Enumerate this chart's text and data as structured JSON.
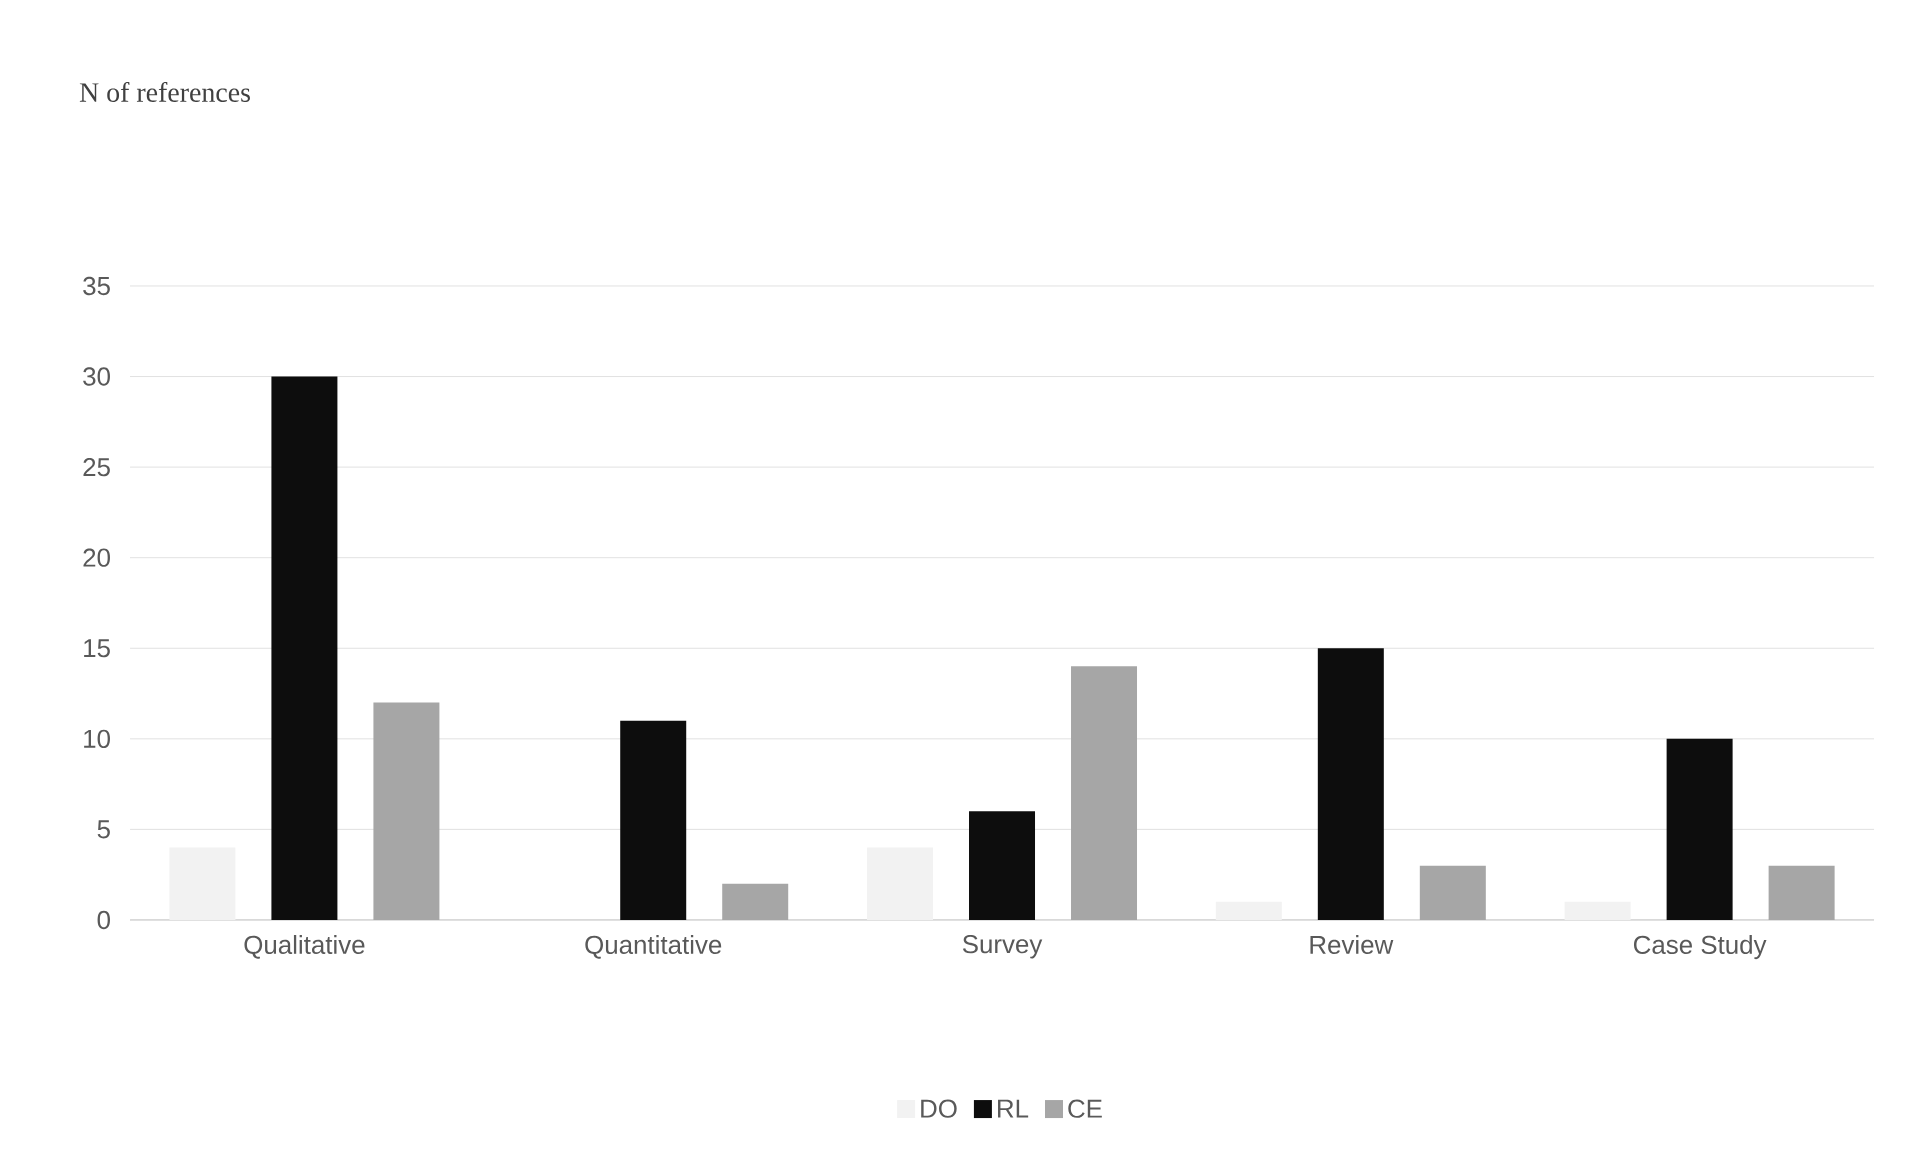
{
  "chart_data": {
    "type": "bar",
    "annotations": [
      "N of references"
    ],
    "categories": [
      "Qualitative",
      "Quantitative",
      "Survey",
      "Review",
      "Case Study"
    ],
    "series": [
      {
        "name": "DO",
        "color": "#f2f2f2",
        "values": [
          4,
          0,
          4,
          1,
          1
        ]
      },
      {
        "name": "RL",
        "color": "#0d0d0d",
        "values": [
          30,
          11,
          6,
          15,
          10
        ]
      },
      {
        "name": "CE",
        "color": "#a6a6a6",
        "values": [
          12,
          2,
          14,
          3,
          3
        ]
      }
    ],
    "ylim": [
      0,
      35
    ],
    "yticks": [
      0,
      5,
      10,
      15,
      20,
      25,
      30,
      35
    ],
    "grid": "y",
    "legend": "bottom"
  }
}
